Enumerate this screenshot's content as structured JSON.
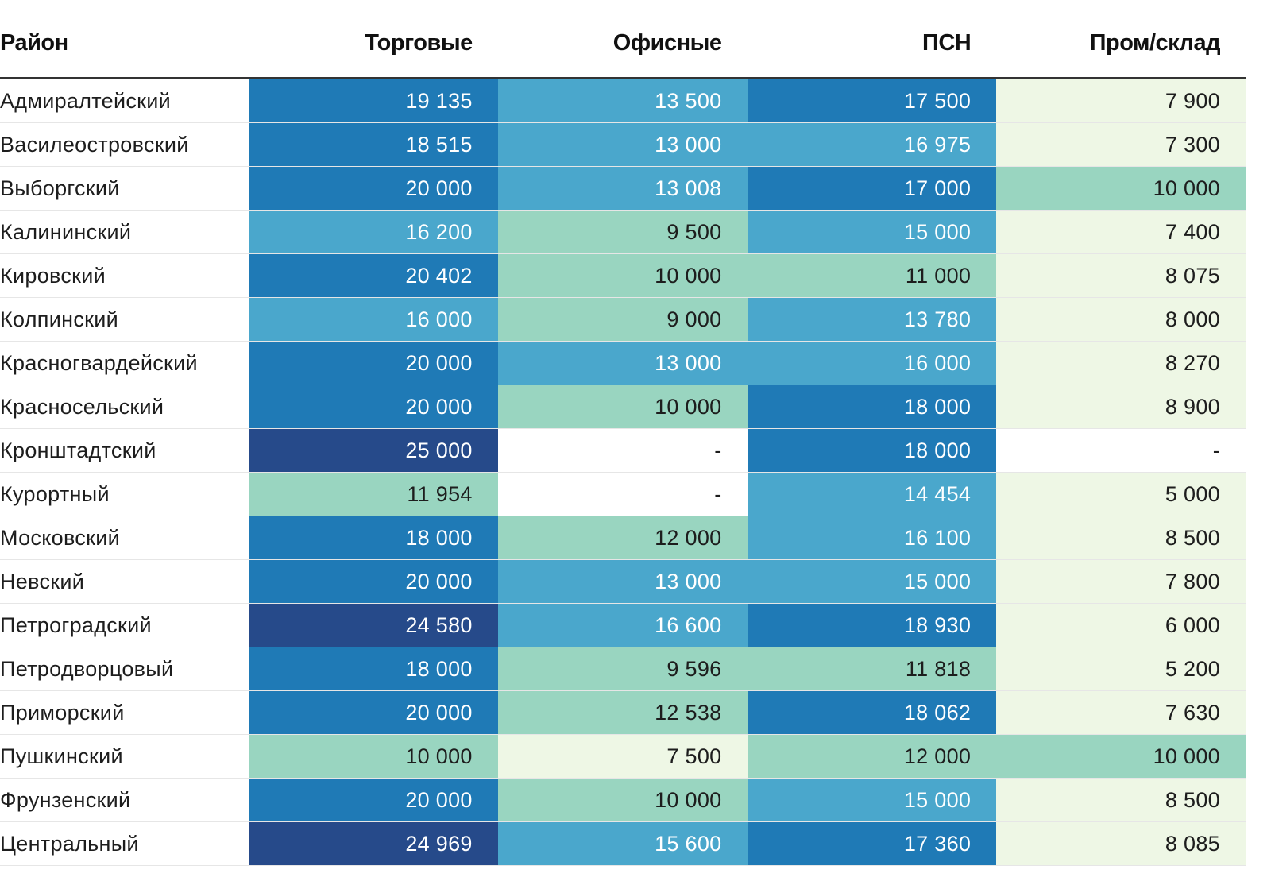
{
  "table": {
    "columns": [
      "Район",
      "Торговые",
      "Офисные",
      "ПСН",
      "Пром/склад"
    ],
    "rows": [
      {
        "cells": [
          "Адмиралтейский",
          "19 135",
          "13 500",
          "17 500",
          "7 900"
        ],
        "fills": [
          "#1f7ab6",
          "#4aa7cc",
          "#1f7ab6",
          "#eef7e5"
        ]
      },
      {
        "cells": [
          "Василеостровский",
          "18 515",
          "13 000",
          "16 975",
          "7 300"
        ],
        "fills": [
          "#1f7ab6",
          "#4aa7cc",
          "#4aa7cc",
          "#eef7e5"
        ]
      },
      {
        "cells": [
          "Выборгский",
          "20 000",
          "13 008",
          "17 000",
          "10 000"
        ],
        "fills": [
          "#1f7ab6",
          "#4aa7cc",
          "#1f7ab6",
          "#99d5c0"
        ]
      },
      {
        "cells": [
          "Калининский",
          "16 200",
          "9 500",
          "15 000",
          "7 400"
        ],
        "fills": [
          "#4aa7cc",
          "#99d5c0",
          "#4aa7cc",
          "#eef7e5"
        ]
      },
      {
        "cells": [
          "Кировский",
          "20 402",
          "10 000",
          "11 000",
          "8 075"
        ],
        "fills": [
          "#1f7ab6",
          "#99d5c0",
          "#99d5c0",
          "#eef7e5"
        ]
      },
      {
        "cells": [
          "Колпинский",
          "16 000",
          "9 000",
          "13 780",
          "8 000"
        ],
        "fills": [
          "#4aa7cc",
          "#99d5c0",
          "#4aa7cc",
          "#eef7e5"
        ]
      },
      {
        "cells": [
          "Красногвардейский",
          "20 000",
          "13 000",
          "16 000",
          "8 270"
        ],
        "fills": [
          "#1f7ab6",
          "#4aa7cc",
          "#4aa7cc",
          "#eef7e5"
        ]
      },
      {
        "cells": [
          "Красносельский",
          "20 000",
          "10 000",
          "18 000",
          "8 900"
        ],
        "fills": [
          "#1f7ab6",
          "#99d5c0",
          "#1f7ab6",
          "#eef7e5"
        ]
      },
      {
        "cells": [
          "Кронштадтский",
          "25 000",
          "-",
          "18 000",
          "-"
        ],
        "fills": [
          "#264a8a",
          "#ffffff",
          "#1f7ab6",
          "#ffffff"
        ]
      },
      {
        "cells": [
          "Курортный",
          "11 954",
          "-",
          "14 454",
          "5 000"
        ],
        "fills": [
          "#99d5c0",
          "#ffffff",
          "#4aa7cc",
          "#eef7e5"
        ]
      },
      {
        "cells": [
          "Московский",
          "18 000",
          "12 000",
          "16 100",
          "8 500"
        ],
        "fills": [
          "#1f7ab6",
          "#99d5c0",
          "#4aa7cc",
          "#eef7e5"
        ]
      },
      {
        "cells": [
          "Невский",
          "20 000",
          "13 000",
          "15 000",
          "7 800"
        ],
        "fills": [
          "#1f7ab6",
          "#4aa7cc",
          "#4aa7cc",
          "#eef7e5"
        ]
      },
      {
        "cells": [
          "Петроградский",
          "24 580",
          "16 600",
          "18 930",
          "6 000"
        ],
        "fills": [
          "#264a8a",
          "#4aa7cc",
          "#1f7ab6",
          "#eef7e5"
        ]
      },
      {
        "cells": [
          "Петродворцовый",
          "18 000",
          "9 596",
          "11 818",
          "5 200"
        ],
        "fills": [
          "#1f7ab6",
          "#99d5c0",
          "#99d5c0",
          "#eef7e5"
        ]
      },
      {
        "cells": [
          "Приморский",
          "20 000",
          "12 538",
          "18 062",
          "7 630"
        ],
        "fills": [
          "#1f7ab6",
          "#99d5c0",
          "#1f7ab6",
          "#eef7e5"
        ]
      },
      {
        "cells": [
          "Пушкинский",
          "10 000",
          "7 500",
          "12 000",
          "10 000"
        ],
        "fills": [
          "#99d5c0",
          "#eef7e5",
          "#99d5c0",
          "#99d5c0"
        ]
      },
      {
        "cells": [
          "Фрунзенский",
          "20 000",
          "10 000",
          "15 000",
          "8 500"
        ],
        "fills": [
          "#1f7ab6",
          "#99d5c0",
          "#4aa7cc",
          "#eef7e5"
        ]
      },
      {
        "cells": [
          "Центральный",
          "24 969",
          "15 600",
          "17 360",
          "8 085"
        ],
        "fills": [
          "#264a8a",
          "#4aa7cc",
          "#1f7ab6",
          "#eef7e5"
        ]
      }
    ]
  }
}
